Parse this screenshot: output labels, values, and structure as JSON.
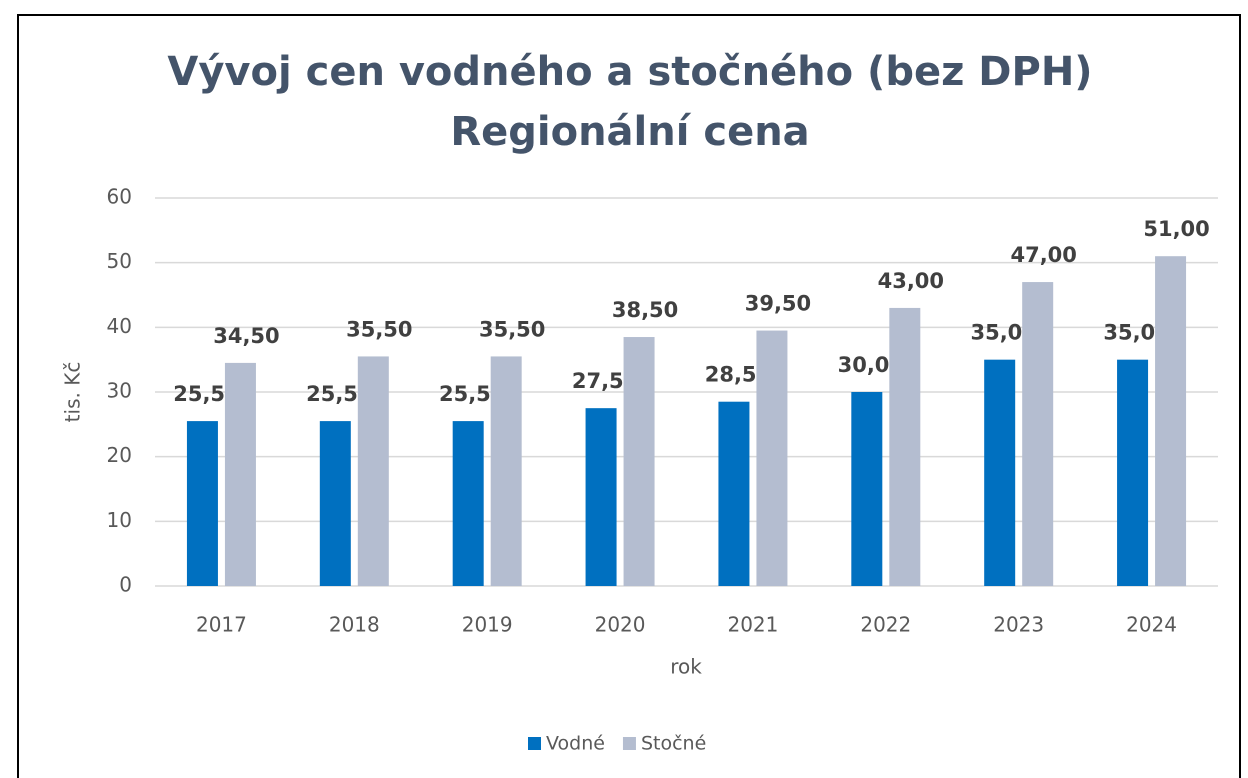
{
  "chart_data": {
    "type": "bar",
    "title": "Vývoj cen vodného a stočného (bez DPH)",
    "subtitle": "Regionální cena",
    "x_label": "rok",
    "y_label": "tis. Kč",
    "categories": [
      "2017",
      "2018",
      "2019",
      "2020",
      "2021",
      "2022",
      "2023",
      "2024"
    ],
    "series": [
      {
        "name": "Vodné",
        "color": "#0070c0",
        "values": [
          25.5,
          25.5,
          25.5,
          27.5,
          28.5,
          30,
          35,
          35
        ],
        "value_labels": [
          "25,50",
          "25,50",
          "25,50",
          "27,50",
          "28,50",
          "30,00",
          "35,00",
          "35,00"
        ]
      },
      {
        "name": "Stočné",
        "color": "#b4bdd0",
        "values": [
          34.5,
          35.5,
          35.5,
          38.5,
          39.5,
          43,
          47,
          51
        ],
        "value_labels": [
          "34,50",
          "35,50",
          "35,50",
          "38,50",
          "39,50",
          "43,00",
          "47,00",
          "51,00"
        ]
      }
    ],
    "ylim": [
      0,
      60
    ],
    "yticks": [
      0,
      10,
      20,
      30,
      40,
      50,
      60
    ],
    "grid": true,
    "legend": "bottom"
  }
}
